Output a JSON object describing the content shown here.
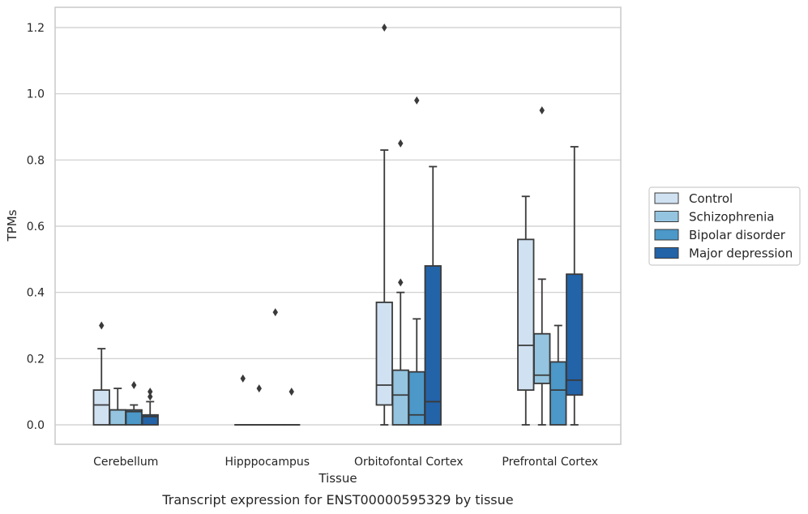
{
  "chart_data": {
    "type": "box",
    "caption": "Transcript expression for ENST00000595329 by tissue",
    "xlabel": "Tissue",
    "ylabel": "TPMs",
    "ylim": [
      -0.06,
      1.26
    ],
    "yticks": [
      0.0,
      0.2,
      0.4,
      0.6,
      0.8,
      1.0,
      1.2
    ],
    "ytick_labels": [
      "0.0",
      "0.2",
      "0.4",
      "0.6",
      "0.8",
      "1.0",
      "1.2"
    ],
    "grid": "horizontal",
    "legend_position": "right",
    "categories": [
      "Cerebellum",
      "Hipppocampus",
      "Orbitofontal Cortex",
      "Prefrontal Cortex"
    ],
    "series": [
      {
        "name": "Control",
        "color": "#d0e1f2",
        "boxes": [
          {
            "q1": 0.0,
            "median": 0.06,
            "q3": 0.105,
            "whisker_low": 0.0,
            "whisker_high": 0.23,
            "outliers": [
              0.3
            ]
          },
          {
            "q1": 0.0,
            "median": 0.0,
            "q3": 0.0,
            "whisker_low": 0.0,
            "whisker_high": 0.0,
            "outliers": [
              0.14
            ]
          },
          {
            "q1": 0.06,
            "median": 0.12,
            "q3": 0.37,
            "whisker_low": 0.0,
            "whisker_high": 0.83,
            "outliers": [
              1.2
            ]
          },
          {
            "q1": 0.105,
            "median": 0.24,
            "q3": 0.56,
            "whisker_low": 0.0,
            "whisker_high": 0.69,
            "outliers": []
          }
        ]
      },
      {
        "name": "Schizophrenia",
        "color": "#94c4df",
        "boxes": [
          {
            "q1": 0.0,
            "median": 0.045,
            "q3": 0.045,
            "whisker_low": 0.0,
            "whisker_high": 0.11,
            "outliers": []
          },
          {
            "q1": 0.0,
            "median": 0.0,
            "q3": 0.0,
            "whisker_low": 0.0,
            "whisker_high": 0.0,
            "outliers": [
              0.11
            ]
          },
          {
            "q1": 0.0,
            "median": 0.09,
            "q3": 0.165,
            "whisker_low": 0.0,
            "whisker_high": 0.4,
            "outliers": [
              0.43,
              0.85
            ]
          },
          {
            "q1": 0.125,
            "median": 0.15,
            "q3": 0.275,
            "whisker_low": 0.0,
            "whisker_high": 0.44,
            "outliers": [
              0.95
            ]
          }
        ]
      },
      {
        "name": "Bipolar disorder",
        "color": "#4b98c9",
        "boxes": [
          {
            "q1": 0.0,
            "median": 0.04,
            "q3": 0.045,
            "whisker_low": 0.0,
            "whisker_high": 0.06,
            "outliers": [
              0.12
            ]
          },
          {
            "q1": 0.0,
            "median": 0.0,
            "q3": 0.0,
            "whisker_low": 0.0,
            "whisker_high": 0.0,
            "outliers": [
              0.34
            ]
          },
          {
            "q1": 0.0,
            "median": 0.03,
            "q3": 0.16,
            "whisker_low": 0.0,
            "whisker_high": 0.32,
            "outliers": [
              0.98
            ]
          },
          {
            "q1": 0.0,
            "median": 0.105,
            "q3": 0.19,
            "whisker_low": 0.0,
            "whisker_high": 0.3,
            "outliers": []
          }
        ]
      },
      {
        "name": "Major depression",
        "color": "#2363a8",
        "boxes": [
          {
            "q1": 0.0,
            "median": 0.025,
            "q3": 0.03,
            "whisker_low": 0.0,
            "whisker_high": 0.07,
            "outliers": [
              0.085,
              0.1
            ]
          },
          {
            "q1": 0.0,
            "median": 0.0,
            "q3": 0.0,
            "whisker_low": 0.0,
            "whisker_high": 0.0,
            "outliers": [
              0.1
            ]
          },
          {
            "q1": 0.0,
            "median": 0.07,
            "q3": 0.48,
            "whisker_low": 0.0,
            "whisker_high": 0.78,
            "outliers": []
          },
          {
            "q1": 0.09,
            "median": 0.135,
            "q3": 0.455,
            "whisker_low": 0.0,
            "whisker_high": 0.84,
            "outliers": []
          }
        ]
      }
    ]
  }
}
